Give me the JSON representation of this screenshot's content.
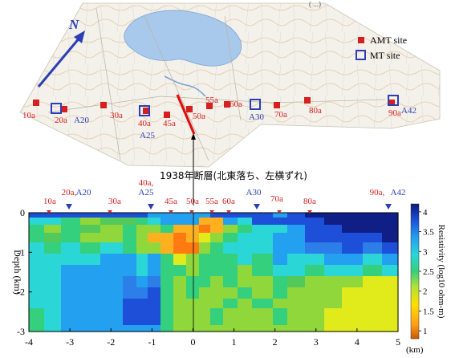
{
  "map": {
    "north_label": "N",
    "corner_text": "( ...)",
    "legend": {
      "amt": "AMT site",
      "mt": "MT site"
    },
    "amt_sites": [
      "10a",
      "20a",
      "30a",
      "40a",
      "45a",
      "50a",
      "55a",
      "60a",
      "70a",
      "80a",
      "90a"
    ],
    "mt_sites": [
      "A20",
      "A25",
      "A30",
      "A42"
    ]
  },
  "fault_label": "1938年断層(北東落ち、左横ずれ)",
  "section": {
    "top_labels": [
      {
        "text": "10a",
        "color": "red"
      },
      {
        "text": "20a,",
        "color": "red"
      },
      {
        "text": "A20",
        "color": "blue"
      },
      {
        "text": "30a",
        "color": "red"
      },
      {
        "text": "40a,",
        "color": "red"
      },
      {
        "text": "A25",
        "color": "blue"
      },
      {
        "text": "45a",
        "color": "red"
      },
      {
        "text": "50a",
        "color": "red"
      },
      {
        "text": "55a",
        "color": "red"
      },
      {
        "text": "60a",
        "color": "red"
      },
      {
        "text": "A30",
        "color": "blue"
      },
      {
        "text": "70a",
        "color": "red"
      },
      {
        "text": "80a",
        "color": "red"
      },
      {
        "text": "90a,",
        "color": "red"
      },
      {
        "text": "A42",
        "color": "blue"
      }
    ],
    "x_axis": {
      "ticks": [
        "-4",
        "-3",
        "-2",
        "-1",
        "0",
        "1",
        "2",
        "3",
        "4",
        "5"
      ],
      "unit": "(km)"
    },
    "y_axis": {
      "label": "Depth (km)",
      "ticks": [
        "0",
        "-1",
        "-2",
        "-3"
      ]
    },
    "colorbar": {
      "label": "Resistivity (log10 ohm-m)",
      "ticks": [
        "4",
        "3.5",
        "3",
        "2.5",
        "2",
        "1.5",
        "1"
      ]
    }
  },
  "colors": {
    "amt": "#d61f1f",
    "mt": "#2a3fb5",
    "fault": "#e01010",
    "water": "#a9c9ec"
  }
}
